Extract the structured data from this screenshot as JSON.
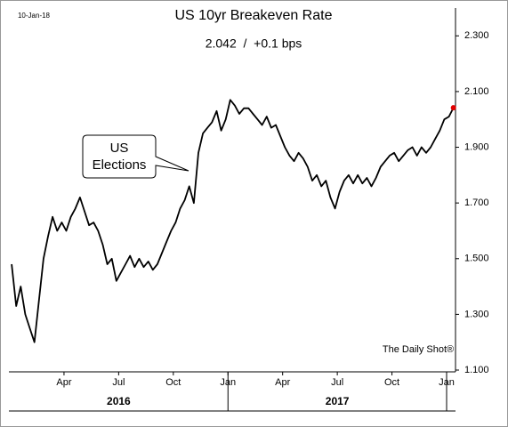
{
  "chart_data": {
    "type": "line",
    "date_stamp": "10-Jan-18",
    "title": "US 10yr Breakeven Rate",
    "subtitle": "2.042  /  +0.1 bps",
    "annotation": [
      "US",
      "Elections"
    ],
    "source": "The Daily Shot®",
    "color": "#000000",
    "end_marker_color": "#e00000",
    "x": [
      "2016-01",
      "2016-01",
      "2016-01",
      "2016-01",
      "2016-02",
      "2016-02",
      "2016-02",
      "2016-02",
      "2016-03",
      "2016-03",
      "2016-03",
      "2016-03",
      "2016-04",
      "2016-04",
      "2016-04",
      "2016-04",
      "2016-05",
      "2016-05",
      "2016-05",
      "2016-05",
      "2016-06",
      "2016-06",
      "2016-06",
      "2016-06",
      "2016-07",
      "2016-07",
      "2016-07",
      "2016-07",
      "2016-08",
      "2016-08",
      "2016-08",
      "2016-08",
      "2016-09",
      "2016-09",
      "2016-09",
      "2016-09",
      "2016-10",
      "2016-10",
      "2016-10",
      "2016-10",
      "2016-11",
      "2016-11",
      "2016-11",
      "2016-11",
      "2016-12",
      "2016-12",
      "2016-12",
      "2016-12",
      "2017-01",
      "2017-01",
      "2017-01",
      "2017-01",
      "2017-02",
      "2017-02",
      "2017-02",
      "2017-02",
      "2017-03",
      "2017-03",
      "2017-03",
      "2017-03",
      "2017-04",
      "2017-04",
      "2017-04",
      "2017-04",
      "2017-05",
      "2017-05",
      "2017-05",
      "2017-05",
      "2017-06",
      "2017-06",
      "2017-06",
      "2017-06",
      "2017-07",
      "2017-07",
      "2017-07",
      "2017-07",
      "2017-08",
      "2017-08",
      "2017-08",
      "2017-08",
      "2017-09",
      "2017-09",
      "2017-09",
      "2017-09",
      "2017-10",
      "2017-10",
      "2017-10",
      "2017-10",
      "2017-11",
      "2017-11",
      "2017-11",
      "2017-11",
      "2017-12",
      "2017-12",
      "2017-12",
      "2017-12",
      "2018-01",
      "2018-01"
    ],
    "values": [
      1.48,
      1.33,
      1.4,
      1.3,
      1.25,
      1.2,
      1.35,
      1.5,
      1.58,
      1.65,
      1.6,
      1.63,
      1.6,
      1.65,
      1.68,
      1.72,
      1.67,
      1.62,
      1.63,
      1.6,
      1.55,
      1.48,
      1.5,
      1.42,
      1.45,
      1.48,
      1.51,
      1.47,
      1.5,
      1.47,
      1.49,
      1.46,
      1.48,
      1.52,
      1.56,
      1.6,
      1.63,
      1.68,
      1.71,
      1.76,
      1.7,
      1.88,
      1.95,
      1.97,
      1.99,
      2.03,
      1.96,
      2.0,
      2.07,
      2.05,
      2.02,
      2.04,
      2.04,
      2.02,
      2.0,
      1.98,
      2.01,
      1.97,
      1.98,
      1.94,
      1.9,
      1.87,
      1.85,
      1.88,
      1.86,
      1.83,
      1.78,
      1.8,
      1.76,
      1.78,
      1.72,
      1.68,
      1.74,
      1.78,
      1.8,
      1.77,
      1.8,
      1.77,
      1.79,
      1.76,
      1.79,
      1.83,
      1.85,
      1.87,
      1.88,
      1.85,
      1.87,
      1.89,
      1.9,
      1.87,
      1.9,
      1.88,
      1.9,
      1.93,
      1.96,
      2.0,
      2.01,
      2.042
    ],
    "ylim": [
      1.1,
      2.4
    ],
    "yticks": [
      {
        "value": 1.1,
        "label": "1.100"
      },
      {
        "value": 1.3,
        "label": "1.300"
      },
      {
        "value": 1.5,
        "label": "1.500"
      },
      {
        "value": 1.7,
        "label": "1.700"
      },
      {
        "value": 1.9,
        "label": "1.900"
      },
      {
        "value": 2.1,
        "label": "2.100"
      },
      {
        "value": 2.3,
        "label": "2.300"
      }
    ],
    "xticks": [
      {
        "value": "2016-04",
        "label": "Apr"
      },
      {
        "value": "2016-07",
        "label": "Jul"
      },
      {
        "value": "2016-10",
        "label": "Oct"
      },
      {
        "value": "2017-01",
        "label": "Jan"
      },
      {
        "value": "2017-04",
        "label": "Apr"
      },
      {
        "value": "2017-07",
        "label": "Jul"
      },
      {
        "value": "2017-10",
        "label": "Oct"
      },
      {
        "value": "2018-01",
        "label": "Jan"
      }
    ],
    "years": [
      "2016",
      "2017"
    ]
  }
}
